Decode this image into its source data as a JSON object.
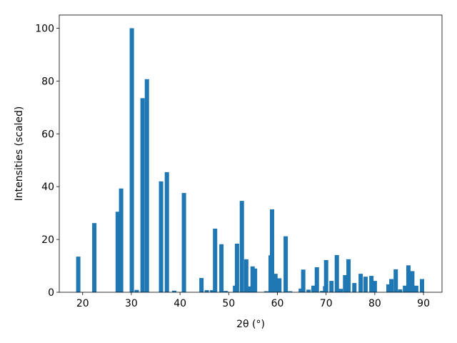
{
  "chart_data": {
    "type": "bar",
    "xlabel": "2θ (°)",
    "ylabel": "Intensities (scaled)",
    "x": [
      19.1,
      22.4,
      27.2,
      27.9,
      30.1,
      31.1,
      32.3,
      33.2,
      36.1,
      37.3,
      38.8,
      40.8,
      44.4,
      45.5,
      46.6,
      47.2,
      48.5,
      49.4,
      51.3,
      51.7,
      52.7,
      53.6,
      54.3,
      54.9,
      55.4,
      57.7,
      58.6,
      58.9,
      59.6,
      60.4,
      61.7,
      62.6,
      64.8,
      65.3,
      66.4,
      67.4,
      68.1,
      69.2,
      69.8,
      70.0,
      71.1,
      72.2,
      73.0,
      73.9,
      74.6,
      75.8,
      77.1,
      78.1,
      79.3,
      80.0,
      82.8,
      83.4,
      84.3,
      85.2,
      86.2,
      86.9,
      87.7,
      88.5,
      89.7
    ],
    "values": [
      13.5,
      26.2,
      30.5,
      39.3,
      100,
      0.9,
      73.5,
      80.7,
      42,
      45.5,
      0.6,
      37.6,
      5.4,
      0.8,
      0.8,
      24.1,
      18.2,
      0.5,
      2.5,
      18.4,
      34.6,
      12.5,
      2.2,
      9.8,
      9.0,
      0.4,
      14,
      31.4,
      7,
      5.3,
      21.2,
      0.4,
      1.4,
      8.6,
      1,
      2.5,
      9.5,
      0.5,
      2.3,
      12.2,
      4.3,
      14.1,
      1.3,
      6.5,
      12.5,
      3.5,
      7,
      5.9,
      6.2,
      4.3,
      3,
      5,
      8.7,
      1.1,
      2.5,
      10.2,
      8,
      2.5,
      5
    ],
    "color": "#1f77b4",
    "xlim": [
      15.2,
      93.8
    ],
    "xticks": [
      20,
      30,
      40,
      50,
      60,
      70,
      80,
      90
    ],
    "ylim": [
      0,
      105
    ],
    "yticks": [
      0,
      20,
      40,
      60,
      80,
      100
    ]
  }
}
